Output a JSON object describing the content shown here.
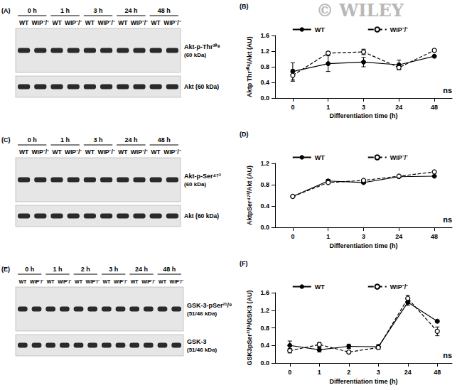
{
  "watermark": "© WILEY",
  "blots": [
    {
      "panel_label": "(A)",
      "times": [
        "0 h",
        "1 h",
        "3 h",
        "24 h",
        "48 h"
      ],
      "lanes": [
        "WT",
        "WIP⁻/⁻"
      ],
      "rows": [
        {
          "label": "Akt-p-Thr³⁰⁸",
          "sublabel": "(60 kDa)"
        },
        {
          "label": "Akt (60 kDa)"
        }
      ]
    },
    {
      "panel_label": "(C)",
      "times": [
        "0 h",
        "1 h",
        "3 h",
        "24 h",
        "48 h"
      ],
      "lanes": [
        "WT",
        "WIP⁻/⁻"
      ],
      "rows": [
        {
          "label": "Akt-p-Ser⁴⁷³",
          "sublabel": "(60 kDa)"
        },
        {
          "label": "Akt (60 kDa)"
        }
      ]
    },
    {
      "panel_label": "(E)",
      "times": [
        "0 h",
        "1 h",
        "2 h",
        "3 h",
        "24 h",
        "48 h"
      ],
      "lanes": [
        "WT",
        "WIP⁻/⁻"
      ],
      "rows": [
        {
          "label": "GSK-3-pSer²¹/⁹",
          "sublabel": "(51/46 kDa)"
        },
        {
          "label": "GSK-3",
          "sublabel": "(51/46 kDa)"
        }
      ]
    }
  ],
  "chart_data": [
    {
      "type": "line",
      "panel_label": "(B)",
      "annotation": "ns",
      "categories": [
        "0",
        "1",
        "3",
        "24",
        "48"
      ],
      "x_label": "Differentiation time (h)",
      "y_label": "Aktp Thr³⁰⁸/Akt (AU)",
      "ylim": [
        0,
        1.6
      ],
      "yticks": [
        {
          "value": 0,
          "label": "0.0"
        },
        0.4,
        0.8,
        1.2,
        1.6
      ],
      "grid": false,
      "legend": "top",
      "series": [
        {
          "name": "WT",
          "color": "#000000",
          "marker": "filled_circle",
          "line_style": "solid",
          "values": [
            0.68,
            0.88,
            0.92,
            0.85,
            1.07
          ],
          "errors": [
            0.22,
            0.2,
            0.12,
            0.12,
            0.03
          ]
        },
        {
          "name": "WIP⁻/⁻",
          "color": "#000000",
          "marker": "open_circle",
          "line_style": "dashed",
          "values": [
            0.58,
            1.15,
            1.18,
            0.78,
            1.22
          ],
          "errors": [
            0.15,
            0.03,
            0.07,
            0.05,
            0.03
          ]
        }
      ]
    },
    {
      "type": "line",
      "panel_label": "(D)",
      "annotation": "ns",
      "categories": [
        "0",
        "1",
        "3",
        "24",
        "48"
      ],
      "x_label": "Differentiation time (h)",
      "y_label": "AktpSer⁴⁷³/Akt (AU)",
      "ylim": [
        0,
        1.2
      ],
      "yticks": [
        {
          "value": 0,
          "label": "0.0"
        },
        0.4,
        0.8,
        1.2
      ],
      "grid": false,
      "legend": "top",
      "series": [
        {
          "name": "WT",
          "color": "#000000",
          "marker": "filled_circle",
          "line_style": "solid",
          "values": [
            0.58,
            0.87,
            0.84,
            0.95,
            0.96
          ],
          "errors": [
            0.01,
            0.03,
            0.02,
            0.02,
            0.01
          ]
        },
        {
          "name": "WIP⁻/⁻",
          "color": "#000000",
          "marker": "open_circle",
          "line_style": "dashed",
          "values": [
            0.58,
            0.84,
            0.88,
            0.96,
            1.04
          ],
          "errors": [
            0.01,
            0.02,
            0.02,
            0.02,
            0.01
          ]
        }
      ]
    },
    {
      "type": "line",
      "panel_label": "(F)",
      "annotation": "ns",
      "categories": [
        "0",
        "1",
        "2",
        "3",
        "24",
        "48"
      ],
      "x_label": "Differentiation time (h)",
      "y_label": "GSK3pSer²¹/⁹/GSK3 (AU)",
      "ylim": [
        0,
        1.6
      ],
      "yticks": [
        {
          "value": 0,
          "label": "0.0"
        },
        0.4,
        0.8,
        1.2,
        1.6
      ],
      "grid": false,
      "legend": "top",
      "series": [
        {
          "name": "WT",
          "color": "#000000",
          "marker": "filled_circle",
          "line_style": "solid",
          "values": [
            0.4,
            0.3,
            0.38,
            0.37,
            1.38,
            0.95
          ],
          "errors": [
            0.1,
            0.05,
            0.05,
            0.05,
            0.07,
            0.03
          ]
        },
        {
          "name": "WIP⁻/⁻",
          "color": "#000000",
          "marker": "open_circle",
          "line_style": "dashed",
          "values": [
            0.28,
            0.42,
            0.25,
            0.35,
            1.47,
            0.72
          ],
          "errors": [
            0.05,
            0.05,
            0.03,
            0.03,
            0.07,
            0.1
          ]
        }
      ]
    }
  ]
}
